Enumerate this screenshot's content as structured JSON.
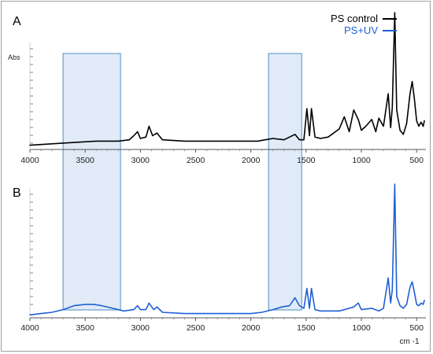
{
  "chart_data": [
    {
      "panel": "A",
      "type": "line",
      "ylabel": "Abs",
      "xlabel": "",
      "xlim": [
        4000,
        430
      ],
      "x_ticks": [
        4000,
        3500,
        3000,
        2500,
        2000,
        1500,
        1000,
        500
      ],
      "x_tick_labels": [
        "4000",
        "3500",
        "3000",
        "2500",
        "2000",
        "1500",
        "1000",
        "500"
      ],
      "legend": [
        {
          "label": "PS control",
          "color": "#000000"
        },
        {
          "label": "PS+UV",
          "color": "#1f5fd6"
        }
      ],
      "legend_placement": "top-right",
      "series": [
        {
          "name": "PS control",
          "color": "#000000",
          "points": [
            [
              4000,
              0.02
            ],
            [
              3800,
              0.03
            ],
            [
              3600,
              0.04
            ],
            [
              3400,
              0.05
            ],
            [
              3200,
              0.05
            ],
            [
              3100,
              0.06
            ],
            [
              3060,
              0.09
            ],
            [
              3026,
              0.12
            ],
            [
              3000,
              0.07
            ],
            [
              2950,
              0.08
            ],
            [
              2922,
              0.16
            ],
            [
              2890,
              0.09
            ],
            [
              2850,
              0.11
            ],
            [
              2800,
              0.06
            ],
            [
              2600,
              0.05
            ],
            [
              2400,
              0.05
            ],
            [
              2200,
              0.05
            ],
            [
              2000,
              0.05
            ],
            [
              1940,
              0.05
            ],
            [
              1870,
              0.06
            ],
            [
              1800,
              0.07
            ],
            [
              1700,
              0.06
            ],
            [
              1601,
              0.1
            ],
            [
              1560,
              0.06
            ],
            [
              1520,
              0.06
            ],
            [
              1493,
              0.29
            ],
            [
              1470,
              0.09
            ],
            [
              1452,
              0.29
            ],
            [
              1420,
              0.08
            ],
            [
              1370,
              0.07
            ],
            [
              1300,
              0.08
            ],
            [
              1200,
              0.14
            ],
            [
              1155,
              0.23
            ],
            [
              1110,
              0.12
            ],
            [
              1069,
              0.28
            ],
            [
              1028,
              0.21
            ],
            [
              1000,
              0.13
            ],
            [
              960,
              0.16
            ],
            [
              906,
              0.21
            ],
            [
              870,
              0.12
            ],
            [
              842,
              0.22
            ],
            [
              800,
              0.16
            ],
            [
              757,
              0.4
            ],
            [
              735,
              0.15
            ],
            [
              720,
              0.3
            ],
            [
              698,
              1.0
            ],
            [
              680,
              0.28
            ],
            [
              650,
              0.13
            ],
            [
              620,
              0.1
            ],
            [
              590,
              0.18
            ],
            [
              560,
              0.4
            ],
            [
              540,
              0.49
            ],
            [
              520,
              0.36
            ],
            [
              500,
              0.2
            ],
            [
              480,
              0.16
            ],
            [
              460,
              0.19
            ],
            [
              440,
              0.16
            ],
            [
              430,
              0.2
            ]
          ]
        }
      ]
    },
    {
      "panel": "B",
      "type": "line",
      "ylabel": "",
      "xlabel": "cm -1",
      "xlim": [
        4000,
        430
      ],
      "x_ticks": [
        4000,
        3500,
        3000,
        2500,
        2000,
        1500,
        1000,
        500
      ],
      "x_tick_labels": [
        "4000",
        "3500",
        "3000",
        "2500",
        "2000",
        "1500",
        "1000",
        "500"
      ],
      "series": [
        {
          "name": "PS+UV",
          "color": "#1f5fd6",
          "points": [
            [
              4000,
              0.01
            ],
            [
              3900,
              0.02
            ],
            [
              3800,
              0.03
            ],
            [
              3700,
              0.05
            ],
            [
              3600,
              0.08
            ],
            [
              3500,
              0.09
            ],
            [
              3420,
              0.09
            ],
            [
              3350,
              0.08
            ],
            [
              3250,
              0.06
            ],
            [
              3150,
              0.04
            ],
            [
              3060,
              0.05
            ],
            [
              3026,
              0.08
            ],
            [
              3000,
              0.05
            ],
            [
              2950,
              0.05
            ],
            [
              2922,
              0.1
            ],
            [
              2880,
              0.05
            ],
            [
              2850,
              0.07
            ],
            [
              2800,
              0.03
            ],
            [
              2600,
              0.02
            ],
            [
              2400,
              0.02
            ],
            [
              2200,
              0.02
            ],
            [
              2000,
              0.02
            ],
            [
              1900,
              0.03
            ],
            [
              1800,
              0.05
            ],
            [
              1720,
              0.07
            ],
            [
              1650,
              0.08
            ],
            [
              1601,
              0.14
            ],
            [
              1560,
              0.08
            ],
            [
              1520,
              0.06
            ],
            [
              1493,
              0.21
            ],
            [
              1470,
              0.06
            ],
            [
              1452,
              0.21
            ],
            [
              1420,
              0.05
            ],
            [
              1370,
              0.04
            ],
            [
              1300,
              0.04
            ],
            [
              1200,
              0.04
            ],
            [
              1155,
              0.05
            ],
            [
              1069,
              0.07
            ],
            [
              1028,
              0.1
            ],
            [
              1000,
              0.05
            ],
            [
              906,
              0.06
            ],
            [
              842,
              0.04
            ],
            [
              800,
              0.06
            ],
            [
              757,
              0.29
            ],
            [
              735,
              0.1
            ],
            [
              720,
              0.2
            ],
            [
              698,
              1.0
            ],
            [
              680,
              0.15
            ],
            [
              650,
              0.08
            ],
            [
              620,
              0.06
            ],
            [
              590,
              0.09
            ],
            [
              560,
              0.22
            ],
            [
              540,
              0.26
            ],
            [
              520,
              0.18
            ],
            [
              500,
              0.09
            ],
            [
              480,
              0.08
            ],
            [
              460,
              0.1
            ],
            [
              440,
              0.09
            ],
            [
              430,
              0.12
            ]
          ]
        }
      ]
    }
  ],
  "highlight_bands": [
    {
      "from": 3700,
      "to": 3180,
      "color": "#dbe8f6",
      "border": "#4d8fc9"
    },
    {
      "from": 1840,
      "to": 1540,
      "color": "#dbe8f6",
      "border": "#4d8fc9"
    }
  ]
}
